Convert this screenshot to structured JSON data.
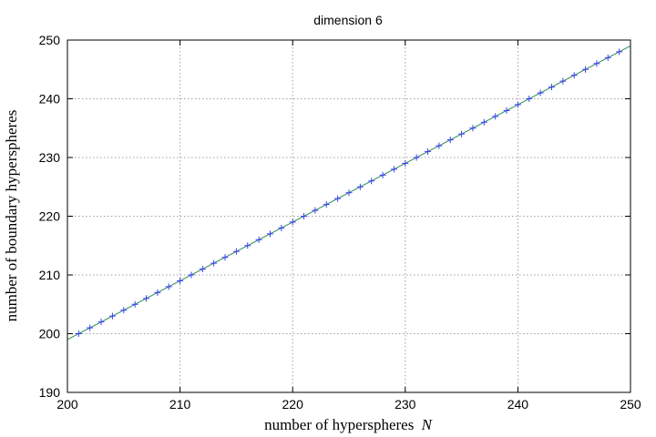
{
  "chart_data": {
    "type": "line",
    "title": "dimension 6",
    "xlabel": "number of hyperspheres",
    "xlabel_var": "N",
    "ylabel": "number of boundary hyperspheres",
    "xlim": [
      200,
      250
    ],
    "ylim": [
      190,
      250
    ],
    "xticks": [
      200,
      210,
      220,
      230,
      240,
      250
    ],
    "yticks": [
      190,
      200,
      210,
      220,
      230,
      240,
      250
    ],
    "grid": true,
    "series": [
      {
        "kind": "fit-line",
        "color": "#2e8b57",
        "x": [
          200,
          250
        ],
        "y": [
          199,
          249
        ]
      },
      {
        "kind": "markers",
        "marker": "plus",
        "color": "#3b3bff",
        "x": [
          201,
          202,
          203,
          204,
          205,
          206,
          207,
          208,
          209,
          210,
          211,
          212,
          213,
          214,
          215,
          216,
          217,
          218,
          219,
          220,
          221,
          222,
          223,
          224,
          225,
          226,
          227,
          228,
          229,
          230,
          231,
          232,
          233,
          234,
          235,
          236,
          237,
          238,
          239,
          240,
          241,
          242,
          243,
          244,
          245,
          246,
          247,
          248,
          249
        ],
        "y": [
          200,
          201,
          202,
          203,
          204,
          205,
          206,
          207,
          208,
          209,
          210,
          211,
          212,
          213,
          214,
          215,
          216,
          217,
          218,
          219,
          220,
          221,
          222,
          223,
          224,
          225,
          226,
          227,
          228,
          229,
          230,
          231,
          232,
          233,
          234,
          235,
          236,
          237,
          238,
          239,
          240,
          241,
          242,
          243,
          244,
          245,
          246,
          247,
          248
        ]
      }
    ]
  }
}
